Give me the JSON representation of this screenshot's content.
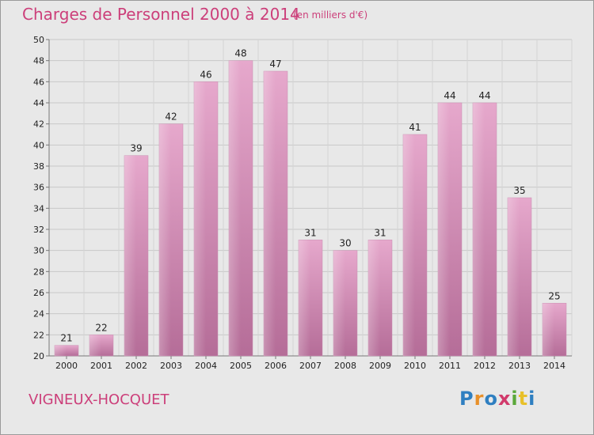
{
  "header": {
    "title": "Charges de Personnel 2000 à 2014",
    "subtitle": "(en milliers d'€)"
  },
  "footer": {
    "commune": "VIGNEUX-HOCQUET",
    "logo_text": "Proxiti"
  },
  "colors": {
    "background": "#e8e8e8",
    "accent": "#cc3f7a",
    "bar_top": "#e6a8cc",
    "bar_bottom": "#b56d98"
  },
  "chart_data": {
    "type": "bar",
    "categories": [
      "2000",
      "2001",
      "2002",
      "2003",
      "2004",
      "2005",
      "2006",
      "2007",
      "2008",
      "2009",
      "2010",
      "2011",
      "2012",
      "2013",
      "2014"
    ],
    "values": [
      21,
      22,
      39,
      42,
      46,
      48,
      47,
      31,
      30,
      31,
      41,
      44,
      44,
      35,
      25
    ],
    "ylim": [
      20,
      50
    ],
    "yticks": [
      20,
      22,
      24,
      26,
      28,
      30,
      32,
      34,
      36,
      38,
      40,
      42,
      44,
      46,
      48,
      50
    ],
    "grid": true,
    "legend": "none"
  }
}
